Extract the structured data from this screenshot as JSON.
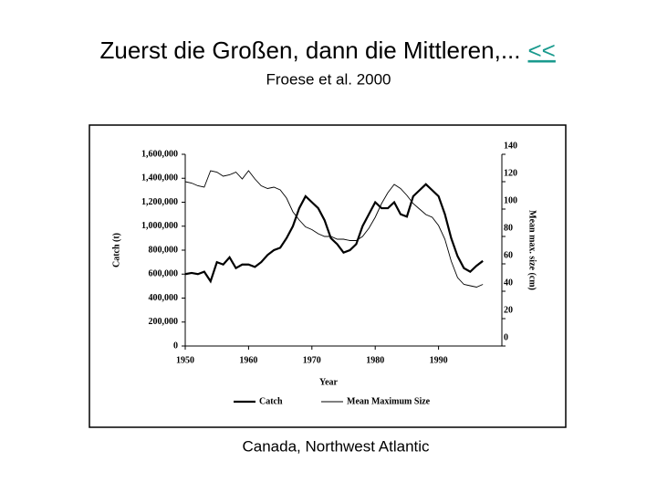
{
  "title": "Zuerst die Großen, dann die Mittleren,...",
  "link": "<<",
  "subtitle": "Froese et al. 2000",
  "caption": "Canada, Northwest Atlantic",
  "chart_data": {
    "type": "line",
    "x_label": "Year",
    "y_label": "Catch (t)",
    "y2_label": "Mean max. size (cm)",
    "x": [
      1950,
      1951,
      1952,
      1953,
      1954,
      1955,
      1956,
      1957,
      1958,
      1959,
      1960,
      1961,
      1962,
      1963,
      1964,
      1965,
      1966,
      1967,
      1968,
      1969,
      1970,
      1971,
      1972,
      1973,
      1974,
      1975,
      1976,
      1977,
      1978,
      1979,
      1980,
      1981,
      1982,
      1983,
      1984,
      1985,
      1986,
      1987,
      1988,
      1989,
      1990,
      1991,
      1992,
      1993,
      1994,
      1995,
      1996,
      1997
    ],
    "xlim": [
      1950,
      2000
    ],
    "xticks": [
      1950,
      1960,
      1970,
      1980,
      1990
    ],
    "ylim": [
      0,
      1600000
    ],
    "yticks": [
      0,
      {
        "value": 200000,
        "label": "200,000"
      },
      {
        "value": 400000,
        "label": "400,000"
      },
      {
        "value": 600000,
        "label": "600,000"
      },
      {
        "value": 800000,
        "label": "800,000"
      },
      {
        "value": 1000000,
        "label": "1,000,000"
      },
      {
        "value": 1200000,
        "label": "1,200,000"
      },
      {
        "value": 1400000,
        "label": "1,400,000"
      },
      {
        "value": 1600000,
        "label": "1,600,000"
      }
    ],
    "y2lim": [
      0,
      140
    ],
    "y2ticks": [
      0,
      20,
      40,
      60,
      80,
      100,
      120,
      140
    ],
    "grid": false,
    "legend": "bottom",
    "series": [
      {
        "name": "Catch",
        "color": "#000000",
        "values": [
          600000,
          610000,
          600000,
          620000,
          540000,
          700000,
          680000,
          740000,
          650000,
          680000,
          680000,
          660000,
          700000,
          760000,
          800000,
          820000,
          900000,
          1000000,
          1150000,
          1250000,
          1200000,
          1150000,
          1050000,
          900000,
          850000,
          780000,
          800000,
          850000,
          1000000,
          1100000,
          1200000,
          1150000,
          1150000,
          1200000,
          1100000,
          1080000,
          1250000,
          1300000,
          1350000,
          1300000,
          1250000,
          1100000,
          900000,
          750000,
          650000,
          620000,
          670000,
          710000
        ]
      },
      {
        "name": "Mean Maximum Size",
        "color": "#000000",
        "axis": "y2",
        "values": [
          120,
          119,
          117,
          116,
          128,
          127,
          124,
          125,
          127,
          122,
          128,
          122,
          117,
          115,
          116,
          114,
          108,
          98,
          92,
          87,
          85,
          82,
          80,
          80,
          78,
          78,
          77,
          77,
          80,
          86,
          94,
          104,
          112,
          118,
          115,
          110,
          104,
          100,
          96,
          94,
          88,
          78,
          62,
          50,
          45,
          44,
          43,
          45
        ]
      }
    ]
  }
}
